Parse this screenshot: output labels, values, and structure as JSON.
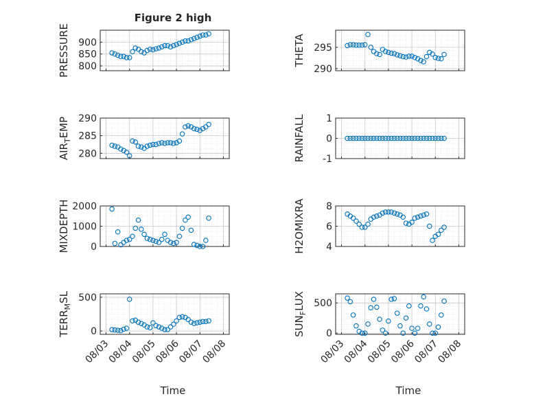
{
  "chart_data": {
    "title": "Figure 2 high",
    "xlabel": "Time",
    "x_ticks": [
      "08/03",
      "08/04",
      "08/05",
      "08/06",
      "08/07",
      "08/08"
    ],
    "series_color": "#0072BD",
    "panels": [
      {
        "ylabel": "PRESSURE",
        "yticks": [
          "800",
          "850",
          "900"
        ],
        "ylim": [
          780,
          950
        ],
        "series": {
          "x": [
            "08/03 06:00",
            "08/03 09:00",
            "08/03 12:00",
            "08/03 15:00",
            "08/03 18:00",
            "08/03 21:00",
            "08/04 00:00",
            "08/04 03:00",
            "08/04 06:00",
            "08/04 09:00",
            "08/04 12:00",
            "08/04 15:00",
            "08/04 18:00",
            "08/04 21:00",
            "08/05 00:00",
            "08/05 03:00",
            "08/05 06:00",
            "08/05 09:00",
            "08/05 12:00",
            "08/05 15:00",
            "08/05 18:00",
            "08/05 21:00",
            "08/06 00:00",
            "08/06 03:00",
            "08/06 06:00",
            "08/06 09:00",
            "08/06 12:00",
            "08/06 15:00",
            "08/06 18:00",
            "08/06 21:00",
            "08/07 00:00",
            "08/07 03:00",
            "08/07 06:00",
            "08/07 09:00"
          ],
          "y": [
            855,
            850,
            845,
            840,
            840,
            835,
            835,
            860,
            875,
            870,
            860,
            855,
            865,
            870,
            868,
            872,
            875,
            880,
            885,
            885,
            880,
            885,
            890,
            895,
            900,
            905,
            905,
            910,
            915,
            920,
            925,
            930,
            930,
            935
          ]
        }
      },
      {
        "ylabel": "THETA",
        "yticks": [
          "290",
          "295"
        ],
        "ylim": [
          289.5,
          299
        ],
        "series": {
          "x": [
            "08/03 06:00",
            "08/03 09:00",
            "08/03 12:00",
            "08/03 15:00",
            "08/03 18:00",
            "08/03 21:00",
            "08/04 00:00",
            "08/04 03:00",
            "08/04 06:00",
            "08/04 09:00",
            "08/04 12:00",
            "08/04 15:00",
            "08/04 18:00",
            "08/04 21:00",
            "08/05 00:00",
            "08/05 03:00",
            "08/05 06:00",
            "08/05 09:00",
            "08/05 12:00",
            "08/05 15:00",
            "08/05 18:00",
            "08/05 21:00",
            "08/06 00:00",
            "08/06 03:00",
            "08/06 06:00",
            "08/06 09:00",
            "08/06 12:00",
            "08/06 15:00",
            "08/06 18:00",
            "08/06 21:00",
            "08/07 00:00",
            "08/07 03:00",
            "08/07 06:00",
            "08/07 09:00"
          ],
          "y": [
            295.4,
            295.6,
            295.6,
            295.5,
            295.5,
            295.5,
            295.6,
            298.0,
            295.0,
            294.0,
            293.5,
            293.3,
            294.5,
            294.0,
            293.8,
            293.6,
            293.5,
            293.2,
            293.0,
            292.8,
            292.7,
            292.9,
            292.9,
            292.6,
            292.3,
            291.9,
            291.6,
            292.8,
            293.8,
            293.4,
            292.6,
            292.4,
            292.3,
            293.3
          ]
        }
      },
      {
        "ylabel": "AIR_TEMP",
        "ylabel_main": "AIR",
        "ylabel_sub": "T",
        "ylabel_rest": "EMP",
        "yticks": [
          "280",
          "285",
          "290"
        ],
        "ylim": [
          278.5,
          290
        ],
        "series": {
          "x": [
            "08/03 06:00",
            "08/03 09:00",
            "08/03 12:00",
            "08/03 15:00",
            "08/03 18:00",
            "08/03 21:00",
            "08/04 00:00",
            "08/04 03:00",
            "08/04 06:00",
            "08/04 09:00",
            "08/04 12:00",
            "08/04 15:00",
            "08/04 18:00",
            "08/04 21:00",
            "08/05 00:00",
            "08/05 03:00",
            "08/05 06:00",
            "08/05 09:00",
            "08/05 12:00",
            "08/05 15:00",
            "08/05 18:00",
            "08/05 21:00",
            "08/06 00:00",
            "08/06 03:00",
            "08/06 06:00",
            "08/06 09:00",
            "08/06 12:00",
            "08/06 15:00",
            "08/06 18:00",
            "08/06 21:00",
            "08/07 00:00",
            "08/07 03:00",
            "08/07 06:00",
            "08/07 09:00"
          ],
          "y": [
            282.3,
            282.0,
            281.8,
            281.2,
            280.8,
            280.3,
            279.3,
            283.5,
            283.2,
            282.0,
            281.8,
            281.4,
            282.0,
            282.3,
            282.5,
            282.5,
            282.8,
            283.0,
            282.8,
            283.0,
            283.0,
            282.8,
            283.0,
            283.5,
            285.5,
            287.5,
            287.8,
            287.5,
            287.0,
            286.8,
            286.5,
            287.0,
            287.5,
            288.2
          ]
        }
      },
      {
        "ylabel": "RAINFALL",
        "yticks": [
          "-1",
          "0",
          "1"
        ],
        "ylim": [
          -1,
          1
        ],
        "series": {
          "x": [
            "08/03 06:00",
            "08/03 09:00",
            "08/03 12:00",
            "08/03 15:00",
            "08/03 18:00",
            "08/03 21:00",
            "08/04 00:00",
            "08/04 03:00",
            "08/04 06:00",
            "08/04 09:00",
            "08/04 12:00",
            "08/04 15:00",
            "08/04 18:00",
            "08/04 21:00",
            "08/05 00:00",
            "08/05 03:00",
            "08/05 06:00",
            "08/05 09:00",
            "08/05 12:00",
            "08/05 15:00",
            "08/05 18:00",
            "08/05 21:00",
            "08/06 00:00",
            "08/06 03:00",
            "08/06 06:00",
            "08/06 09:00",
            "08/06 12:00",
            "08/06 15:00",
            "08/06 18:00",
            "08/06 21:00",
            "08/07 00:00",
            "08/07 03:00",
            "08/07 06:00",
            "08/07 09:00"
          ],
          "y": [
            0,
            0,
            0,
            0,
            0,
            0,
            0,
            0,
            0,
            0,
            0,
            0,
            0,
            0,
            0,
            0,
            0,
            0,
            0,
            0,
            0,
            0,
            0,
            0,
            0,
            0,
            0,
            0,
            0,
            0,
            0,
            0,
            0,
            0
          ]
        }
      },
      {
        "ylabel": "MIXDEPTH",
        "yticks": [
          "0",
          "1000",
          "2000"
        ],
        "ylim": [
          0,
          2000
        ],
        "series": {
          "x": [
            "08/03 06:00",
            "08/03 09:00",
            "08/03 12:00",
            "08/03 15:00",
            "08/03 18:00",
            "08/03 21:00",
            "08/04 00:00",
            "08/04 03:00",
            "08/04 06:00",
            "08/04 09:00",
            "08/04 12:00",
            "08/04 15:00",
            "08/04 18:00",
            "08/04 21:00",
            "08/05 00:00",
            "08/05 03:00",
            "08/05 06:00",
            "08/05 09:00",
            "08/05 12:00",
            "08/05 15:00",
            "08/05 18:00",
            "08/05 21:00",
            "08/06 00:00",
            "08/06 03:00",
            "08/06 06:00",
            "08/06 09:00",
            "08/06 12:00",
            "08/06 15:00",
            "08/06 18:00",
            "08/06 21:00",
            "08/07 00:00",
            "08/07 03:00",
            "08/07 06:00",
            "08/07 09:00"
          ],
          "y": [
            1850,
            150,
            720,
            80,
            200,
            300,
            350,
            500,
            900,
            1300,
            850,
            600,
            400,
            350,
            300,
            250,
            200,
            350,
            600,
            300,
            200,
            150,
            200,
            500,
            900,
            1300,
            1450,
            800,
            100,
            50,
            0,
            0,
            300,
            1400
          ]
        }
      },
      {
        "ylabel": "H2OMIXRA",
        "yticks": [
          "4",
          "6",
          "8"
        ],
        "ylim": [
          4,
          8
        ],
        "series": {
          "x": [
            "08/03 06:00",
            "08/03 09:00",
            "08/03 12:00",
            "08/03 15:00",
            "08/03 18:00",
            "08/03 21:00",
            "08/04 00:00",
            "08/04 03:00",
            "08/04 06:00",
            "08/04 09:00",
            "08/04 12:00",
            "08/04 15:00",
            "08/04 18:00",
            "08/04 21:00",
            "08/05 00:00",
            "08/05 03:00",
            "08/05 06:00",
            "08/05 09:00",
            "08/05 12:00",
            "08/05 15:00",
            "08/05 18:00",
            "08/05 21:00",
            "08/06 00:00",
            "08/06 03:00",
            "08/06 06:00",
            "08/06 09:00",
            "08/06 12:00",
            "08/06 15:00",
            "08/06 18:00",
            "08/06 21:00",
            "08/07 00:00",
            "08/07 03:00",
            "08/07 06:00",
            "08/07 09:00"
          ],
          "y": [
            7.2,
            7.0,
            6.8,
            6.5,
            6.2,
            5.9,
            5.9,
            6.2,
            6.7,
            6.9,
            7.0,
            7.1,
            7.3,
            7.4,
            7.4,
            7.4,
            7.3,
            7.2,
            7.1,
            6.9,
            6.3,
            6.2,
            6.4,
            6.8,
            6.9,
            7.0,
            7.1,
            7.2,
            6.0,
            4.6,
            5.0,
            5.2,
            5.6,
            5.9
          ]
        }
      },
      {
        "ylabel": "TERR_MSL",
        "ylabel_main": "TERR",
        "ylabel_sub": "M",
        "ylabel_rest": "SL",
        "yticks": [
          "0",
          "500"
        ],
        "ylim": [
          -50,
          550
        ],
        "series": {
          "x": [
            "08/03 06:00",
            "08/03 09:00",
            "08/03 12:00",
            "08/03 15:00",
            "08/03 18:00",
            "08/03 21:00",
            "08/04 00:00",
            "08/04 03:00",
            "08/04 06:00",
            "08/04 09:00",
            "08/04 12:00",
            "08/04 15:00",
            "08/04 18:00",
            "08/04 21:00",
            "08/05 00:00",
            "08/05 03:00",
            "08/05 06:00",
            "08/05 09:00",
            "08/05 12:00",
            "08/05 15:00",
            "08/05 18:00",
            "08/05 21:00",
            "08/06 00:00",
            "08/06 03:00",
            "08/06 06:00",
            "08/06 09:00",
            "08/06 12:00",
            "08/06 15:00",
            "08/06 18:00",
            "08/06 21:00",
            "08/07 00:00",
            "08/07 03:00",
            "08/07 06:00",
            "08/07 09:00"
          ],
          "y": [
            20,
            15,
            10,
            5,
            25,
            40,
            470,
            150,
            160,
            130,
            110,
            90,
            60,
            50,
            120,
            80,
            60,
            40,
            20,
            20,
            60,
            100,
            150,
            200,
            210,
            200,
            170,
            130,
            110,
            120,
            130,
            140,
            140,
            150
          ]
        }
      },
      {
        "ylabel": "SUN_FLUX",
        "ylabel_main": "SUN",
        "ylabel_sub": "F",
        "ylabel_rest": "LUX",
        "yticks": [
          "0",
          "500"
        ],
        "ylim": [
          -20,
          650
        ],
        "series": {
          "x": [
            "08/03 06:00",
            "08/03 09:00",
            "08/03 12:00",
            "08/03 15:00",
            "08/03 18:00",
            "08/03 21:00",
            "08/04 00:00",
            "08/04 03:00",
            "08/04 06:00",
            "08/04 09:00",
            "08/04 12:00",
            "08/04 15:00",
            "08/04 18:00",
            "08/04 21:00",
            "08/05 00:00",
            "08/05 03:00",
            "08/05 06:00",
            "08/05 09:00",
            "08/05 12:00",
            "08/05 15:00",
            "08/05 18:00",
            "08/05 21:00",
            "08/06 00:00",
            "08/06 03:00",
            "08/06 06:00",
            "08/06 09:00",
            "08/06 12:00",
            "08/06 15:00",
            "08/06 18:00",
            "08/06 21:00",
            "08/07 00:00",
            "08/07 03:00",
            "08/07 06:00",
            "08/07 09:00"
          ],
          "y": [
            580,
            520,
            300,
            120,
            30,
            0,
            0,
            150,
            420,
            560,
            430,
            230,
            50,
            0,
            200,
            560,
            570,
            330,
            120,
            0,
            250,
            450,
            80,
            0,
            80,
            450,
            600,
            400,
            150,
            0,
            0,
            100,
            300,
            530
          ]
        }
      }
    ]
  }
}
